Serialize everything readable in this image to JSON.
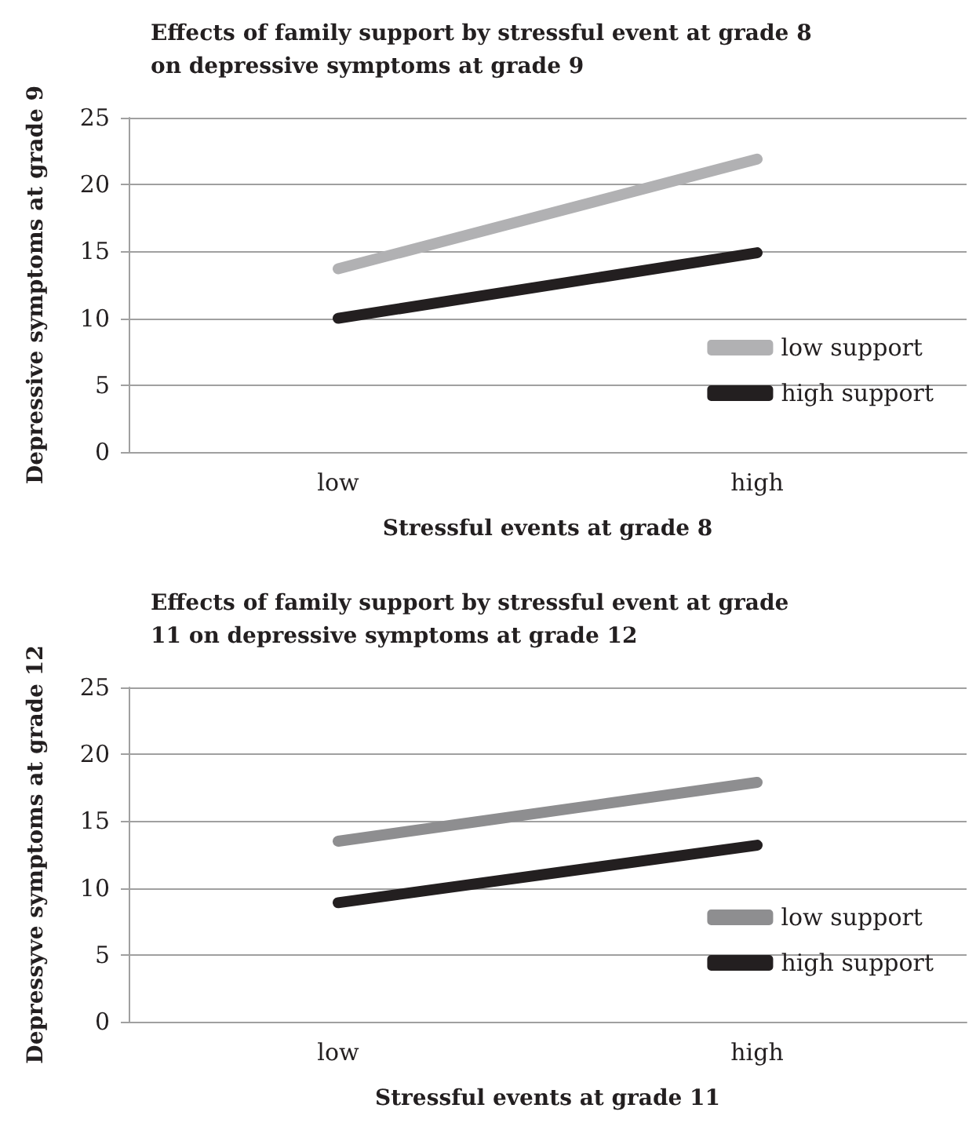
{
  "chart_data": [
    {
      "type": "line",
      "title": "Effects of family support by stressful event at grade 8 on depressive symptoms at grade 9",
      "xlabel": "Stressful events at grade 8",
      "ylabel": "Depressive symptoms at grade 9",
      "categories": [
        "low",
        "high"
      ],
      "series": [
        {
          "name": "low support",
          "color": "#b1b1b3",
          "values": [
            13.7,
            21.9
          ]
        },
        {
          "name": "high support",
          "color": "#231f20",
          "values": [
            10,
            14.9
          ]
        }
      ],
      "ylim": [
        0,
        25
      ],
      "yticks": [
        0,
        5,
        10,
        15,
        20,
        25
      ],
      "grid": "y",
      "legend": "bottom right",
      "marker": "none",
      "line_style": "solid"
    },
    {
      "type": "line",
      "title": "Effects of family support by stressful event at grade 11 on depressive symptoms at grade 12",
      "xlabel": "Stressful events at grade 11",
      "ylabel": "Depressyve symptoms at grade 12",
      "categories": [
        "low",
        "high"
      ],
      "series": [
        {
          "name": "low support",
          "color": "#8e8e90",
          "values": [
            13.5,
            17.9
          ]
        },
        {
          "name": "high support",
          "color": "#231f20",
          "values": [
            8.9,
            13.2
          ]
        }
      ],
      "ylim": [
        0,
        25
      ],
      "yticks": [
        0,
        5,
        10,
        15,
        20,
        25
      ],
      "grid": "y",
      "legend": "bottom right",
      "marker": "none",
      "line_style": "solid"
    }
  ]
}
